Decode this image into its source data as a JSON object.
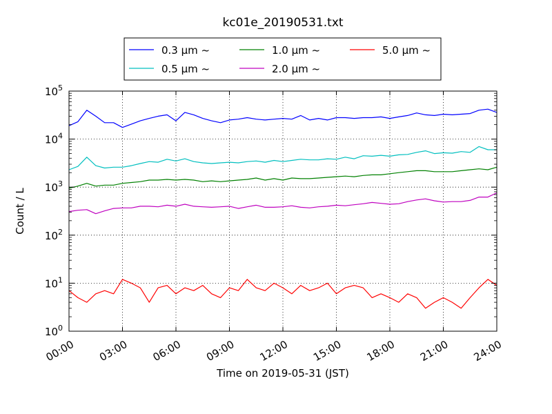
{
  "chart_data": {
    "type": "line",
    "title": "kc01e_20190531.txt",
    "xlabel": "Time on 2019-05-31 (JST)",
    "ylabel": "Count / L",
    "yscale": "log",
    "ylim": [
      1,
      100000
    ],
    "xlim": [
      "00:00",
      "24:00"
    ],
    "grid": true,
    "legend_position": "top-center",
    "x_ticks": [
      "00:00",
      "03:00",
      "06:00",
      "09:00",
      "12:00",
      "15:00",
      "18:00",
      "21:00",
      "24:00"
    ],
    "y_ticks": [
      {
        "base": "10",
        "exp": "0"
      },
      {
        "base": "10",
        "exp": "1"
      },
      {
        "base": "10",
        "exp": "2"
      },
      {
        "base": "10",
        "exp": "3"
      },
      {
        "base": "10",
        "exp": "4"
      },
      {
        "base": "10",
        "exp": "5"
      }
    ],
    "x_hours": [
      0,
      0.5,
      1,
      1.5,
      2,
      2.5,
      3,
      3.5,
      4,
      4.5,
      5,
      5.5,
      6,
      6.5,
      7,
      7.5,
      8,
      8.5,
      9,
      9.5,
      10,
      10.5,
      11,
      11.5,
      12,
      12.5,
      13,
      13.5,
      14,
      14.5,
      15,
      15.5,
      16,
      16.5,
      17,
      17.5,
      18,
      18.5,
      19,
      19.5,
      20,
      20.5,
      21,
      21.5,
      22,
      22.5,
      23,
      23.5,
      24
    ],
    "series": [
      {
        "name": "0.3 μm ~",
        "color": "#0000ff",
        "values": [
          19000,
          23000,
          40000,
          30000,
          22000,
          22000,
          17500,
          20500,
          24000,
          27000,
          30000,
          32000,
          24000,
          36000,
          32000,
          27000,
          24000,
          22000,
          25000,
          26000,
          28000,
          26000,
          25000,
          26000,
          27000,
          26000,
          31000,
          25000,
          27000,
          25000,
          28000,
          28000,
          27000,
          28000,
          28000,
          29000,
          27000,
          29000,
          31000,
          35000,
          32000,
          31000,
          33000,
          32000,
          33000,
          34000,
          40000,
          42000,
          36000
        ]
      },
      {
        "name": "0.5 μm ~",
        "color": "#00bfbf",
        "values": [
          2300,
          2700,
          4200,
          2800,
          2500,
          2600,
          2600,
          2800,
          3100,
          3400,
          3300,
          3800,
          3500,
          3900,
          3400,
          3200,
          3100,
          3200,
          3300,
          3200,
          3400,
          3500,
          3300,
          3600,
          3400,
          3600,
          3800,
          3700,
          3700,
          3900,
          3800,
          4200,
          3900,
          4500,
          4400,
          4600,
          4400,
          4700,
          4800,
          5300,
          5700,
          5000,
          5200,
          5100,
          5500,
          5300,
          7000,
          6000,
          6000
        ]
      },
      {
        "name": "1.0 μm ~",
        "color": "#008000",
        "values": [
          950,
          1050,
          1200,
          1050,
          1100,
          1100,
          1200,
          1250,
          1300,
          1400,
          1400,
          1450,
          1400,
          1450,
          1400,
          1300,
          1350,
          1300,
          1350,
          1400,
          1450,
          1550,
          1400,
          1500,
          1400,
          1550,
          1500,
          1500,
          1550,
          1600,
          1650,
          1700,
          1650,
          1750,
          1800,
          1800,
          1900,
          2000,
          2100,
          2200,
          2200,
          2100,
          2100,
          2100,
          2200,
          2300,
          2400,
          2300,
          2600
        ]
      },
      {
        "name": "2.0 μm ~",
        "color": "#bf00bf",
        "values": [
          310,
          330,
          340,
          280,
          320,
          360,
          370,
          370,
          400,
          400,
          390,
          420,
          400,
          440,
          400,
          390,
          380,
          390,
          400,
          360,
          390,
          420,
          380,
          380,
          390,
          410,
          380,
          370,
          390,
          400,
          420,
          410,
          430,
          450,
          480,
          460,
          440,
          450,
          500,
          540,
          570,
          520,
          490,
          500,
          500,
          530,
          620,
          620,
          760
        ]
      },
      {
        "name": "5.0 μm ~",
        "color": "#ff0000",
        "values": [
          7,
          5,
          4,
          6,
          7,
          6,
          12,
          10,
          8,
          4,
          8,
          9,
          6,
          8,
          7,
          9,
          6,
          5,
          8,
          7,
          12,
          8,
          7,
          10,
          8,
          6,
          9,
          7,
          8,
          10,
          6,
          8,
          9,
          8,
          5,
          6,
          5,
          4,
          6,
          5,
          3,
          4,
          5,
          4,
          3,
          5,
          8,
          12,
          9
        ]
      }
    ]
  }
}
